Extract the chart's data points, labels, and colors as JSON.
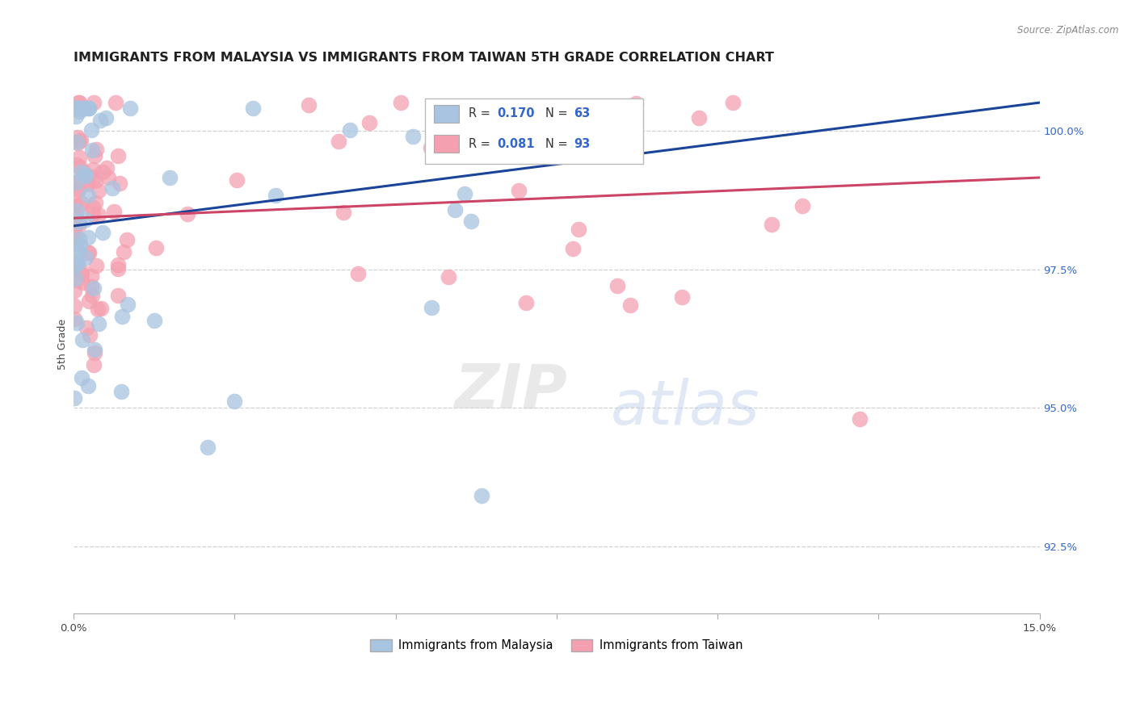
{
  "title": "IMMIGRANTS FROM MALAYSIA VS IMMIGRANTS FROM TAIWAN 5TH GRADE CORRELATION CHART",
  "source": "Source: ZipAtlas.com",
  "ylabel": "5th Grade",
  "yticks": [
    92.5,
    95.0,
    97.5,
    100.0
  ],
  "ytick_labels": [
    "92.5%",
    "95.0%",
    "97.5%",
    "100.0%"
  ],
  "xlim": [
    0.0,
    15.0
  ],
  "ylim": [
    91.3,
    101.0
  ],
  "legend_malaysia": "Immigrants from Malaysia",
  "legend_taiwan": "Immigrants from Taiwan",
  "R_malaysia": 0.17,
  "N_malaysia": 63,
  "R_taiwan": 0.081,
  "N_taiwan": 93,
  "color_malaysia": "#a8c4e0",
  "color_taiwan": "#f4a0b0",
  "color_line_malaysia": "#1a4499",
  "color_line_taiwan": "#cc4466",
  "background_color": "#ffffff",
  "title_fontsize": 11.5,
  "axis_label_fontsize": 9,
  "tick_fontsize": 9.5,
  "legend_text_color_R": "#333333",
  "legend_text_color_val": "#3366cc",
  "watermark_zip_color": "#d8d8d8",
  "watermark_atlas_color": "#b8cce8",
  "mal_line_x0": 0.0,
  "mal_line_y0": 98.28,
  "mal_line_x1": 15.0,
  "mal_line_y1": 100.5,
  "tai_line_x0": 0.0,
  "tai_line_y0": 98.42,
  "tai_line_x1": 15.0,
  "tai_line_y1": 99.15
}
